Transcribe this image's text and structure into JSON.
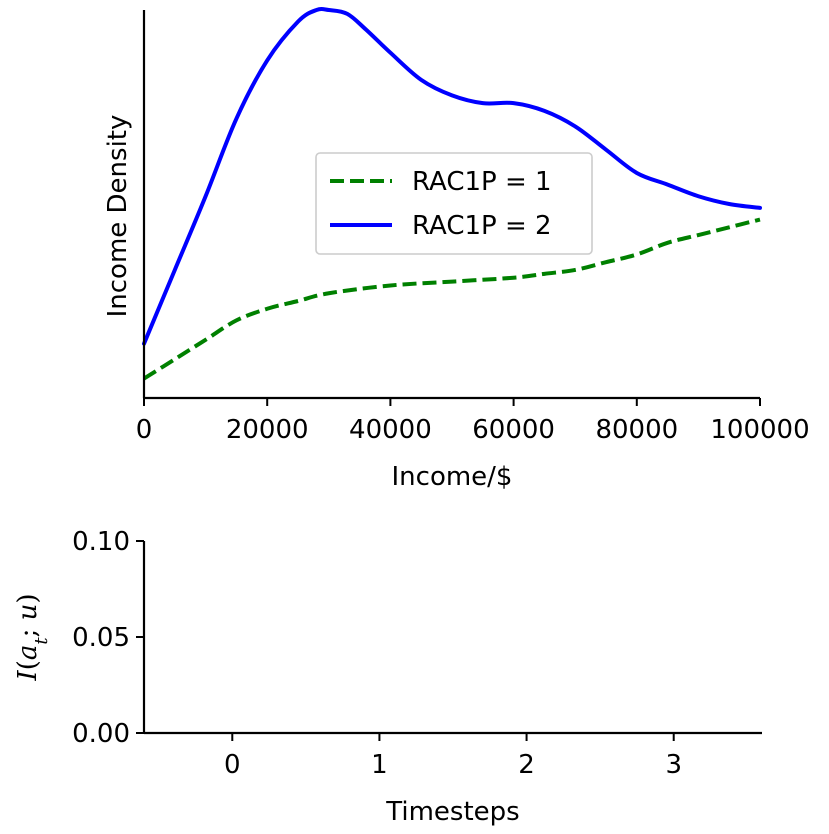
{
  "chart_data": [
    {
      "type": "line",
      "title": "",
      "xlabel": "Income/$",
      "ylabel": "Income Density",
      "xlim": [
        0,
        100000
      ],
      "ylim": [
        0,
        1
      ],
      "y_ticks_shown": false,
      "x_ticks": [
        "0",
        "20000",
        "40000",
        "60000",
        "80000",
        "100000"
      ],
      "x_tick_values": [
        0,
        20000,
        40000,
        60000,
        80000,
        100000
      ],
      "grid": false,
      "legend_position": "center-right",
      "series": [
        {
          "name": "RAC1P = 1",
          "color": "#008000",
          "style": "dashed",
          "x": [
            0,
            5000,
            10000,
            15000,
            20000,
            25000,
            30000,
            40000,
            50000,
            60000,
            65000,
            70000,
            75000,
            80000,
            85000,
            90000,
            95000,
            100000
          ],
          "y": [
            0.05,
            0.1,
            0.15,
            0.2,
            0.23,
            0.25,
            0.27,
            0.29,
            0.3,
            0.31,
            0.32,
            0.33,
            0.35,
            0.37,
            0.4,
            0.42,
            0.44,
            0.46
          ]
        },
        {
          "name": "RAC1P = 2",
          "color": "#0000ff",
          "style": "solid",
          "x": [
            0,
            5000,
            10000,
            15000,
            20000,
            25000,
            28000,
            30000,
            33000,
            36000,
            40000,
            45000,
            50000,
            55000,
            60000,
            65000,
            70000,
            75000,
            80000,
            85000,
            90000,
            95000,
            100000
          ],
          "y": [
            0.14,
            0.33,
            0.52,
            0.72,
            0.87,
            0.97,
            1.0,
            1.0,
            0.99,
            0.95,
            0.89,
            0.82,
            0.78,
            0.76,
            0.76,
            0.74,
            0.7,
            0.64,
            0.58,
            0.55,
            0.52,
            0.5,
            0.49
          ]
        }
      ]
    },
    {
      "type": "line",
      "title": "",
      "xlabel": "Timesteps",
      "ylabel": "I(a_t; u)",
      "ylabel_parts": {
        "italic_prefix": "I",
        "open_paren": "(",
        "var": "a",
        "subscript": "t",
        "separator": "; ",
        "second_var": "u",
        "close_paren": ")"
      },
      "xlim": [
        -0.6,
        3.6
      ],
      "ylim": [
        0.0,
        0.1
      ],
      "x_ticks": [
        "0",
        "1",
        "2",
        "3"
      ],
      "x_tick_values": [
        0,
        1,
        2,
        3
      ],
      "y_ticks": [
        "0.00",
        "0.05",
        "0.10"
      ],
      "y_tick_values": [
        0.0,
        0.05,
        0.1
      ],
      "grid": false,
      "series": [
        {
          "color": "#000000",
          "style": "solid",
          "x": [
            -0.6,
            3.6
          ],
          "y": [
            0.0,
            0.0
          ]
        }
      ]
    }
  ]
}
